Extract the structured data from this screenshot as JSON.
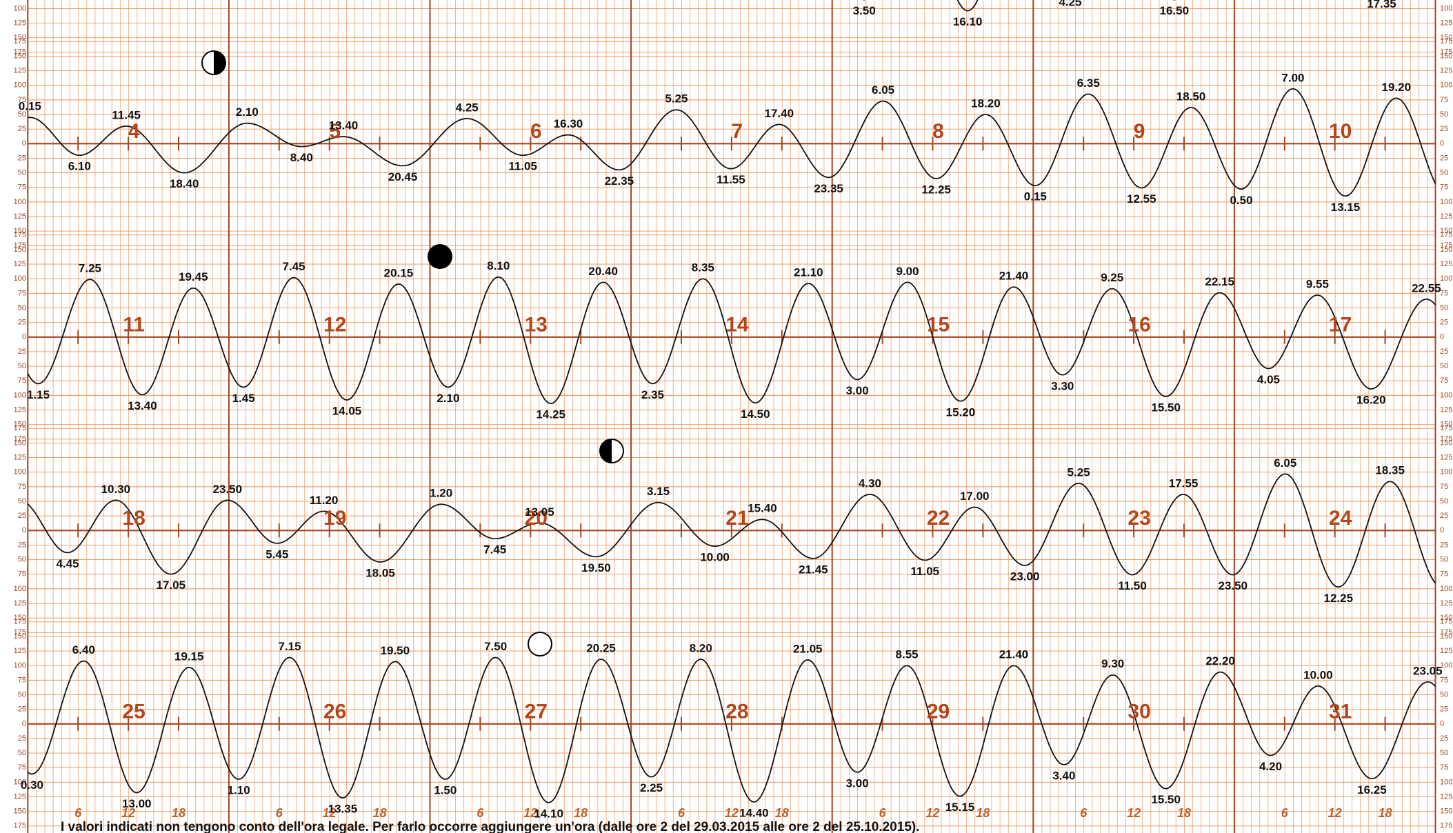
{
  "chart_data": [
    {
      "type": "line",
      "x": [
        99.83,
        112.17,
        124.42,
        136.83,
        161.58
      ],
      "values": [
        -85,
        -104,
        -70,
        -85,
        -73
      ],
      "labels": [
        "3.50",
        "16.10",
        "4.25",
        "16.50",
        "17.35"
      ],
      "xlim": [
        0,
        168
      ],
      "ylim": [
        -175,
        175
      ],
      "yticks": [
        {
          "value": -175,
          "label": "175"
        },
        {
          "value": -150,
          "label": "150"
        },
        {
          "value": -125,
          "label": "125"
        },
        {
          "value": -100,
          "label": "100"
        },
        {
          "value": -75,
          "label": "75"
        },
        {
          "value": -50,
          "label": "50"
        },
        {
          "value": -25,
          "label": "25"
        },
        0,
        25,
        50,
        75,
        100,
        125,
        150,
        175
      ]
    },
    {
      "type": "line",
      "days": [
        4,
        5,
        6,
        7,
        8,
        9,
        10
      ],
      "x": [
        0.25,
        6.17,
        11.75,
        18.67,
        26.17,
        32.67,
        37.67,
        44.75,
        52.42,
        59.08,
        64.5,
        70.58,
        77.42,
        83.92,
        89.67,
        95.58,
        102.08,
        108.42,
        114.33,
        120.25,
        126.58,
        132.92,
        138.83,
        144.83,
        151,
        157.25,
        163.33
      ],
      "values": [
        45,
        -20,
        30,
        -50,
        35,
        -5,
        12,
        -38,
        43,
        -20,
        15,
        -45,
        58,
        -43,
        33,
        -58,
        73,
        -60,
        50,
        -72,
        85,
        -76,
        62,
        -78,
        94,
        -90,
        78
      ],
      "labels": [
        "0.15",
        "6.10",
        "11.45",
        "18.40",
        "2.10",
        "8.40",
        "13.40",
        "20.45",
        "4.25",
        "11.05",
        "16.30",
        "22.35",
        "5.25",
        "11.55",
        "17.40",
        "23.35",
        "6.05",
        "12.25",
        "18.20",
        "0.15",
        "6.35",
        "12.55",
        "18.50",
        "0.50",
        "7.00",
        "13.15",
        "19.20"
      ],
      "xlim": [
        0,
        168
      ],
      "ylim": [
        -175,
        175
      ],
      "yticks": [
        {
          "value": -175,
          "label": "175"
        },
        {
          "value": -150,
          "label": "150"
        },
        {
          "value": -125,
          "label": "125"
        },
        {
          "value": -100,
          "label": "100"
        },
        {
          "value": -75,
          "label": "75"
        },
        {
          "value": -50,
          "label": "50"
        },
        {
          "value": -25,
          "label": "25"
        },
        0,
        25,
        50,
        75,
        100,
        125,
        150,
        175
      ]
    },
    {
      "type": "line",
      "days": [
        11,
        12,
        13,
        14,
        15,
        16,
        17
      ],
      "x": [
        1.25,
        7.42,
        13.67,
        19.75,
        25.75,
        31.75,
        38.08,
        44.25,
        50.17,
        56.17,
        62.42,
        68.67,
        74.58,
        80.58,
        86.83,
        93.17,
        99,
        105,
        111.33,
        117.67,
        123.5,
        129.42,
        135.83,
        142.25,
        148.08,
        153.92,
        160.33,
        166.92
      ],
      "values": [
        -80,
        99,
        -99,
        84,
        -86,
        102,
        -108,
        91,
        -86,
        103,
        -114,
        94,
        -80,
        100,
        -113,
        92,
        -73,
        94,
        -110,
        86,
        -65,
        83,
        -102,
        76,
        -54,
        72,
        -89,
        65
      ],
      "labels": [
        "1.15",
        "7.25",
        "13.40",
        "19.45",
        "1.45",
        "7.45",
        "14.05",
        "20.15",
        "2.10",
        "8.10",
        "14.25",
        "20.40",
        "2.35",
        "8.35",
        "14.50",
        "21.10",
        "3.00",
        "9.00",
        "15.20",
        "21.40",
        "3.30",
        "9.25",
        "15.50",
        "22.15",
        "4.05",
        "9.55",
        "16.20",
        "22.55"
      ],
      "xlim": [
        0,
        168
      ],
      "ylim": [
        -175,
        175
      ],
      "yticks": [
        {
          "value": -175,
          "label": "175"
        },
        {
          "value": -150,
          "label": "150"
        },
        {
          "value": -125,
          "label": "125"
        },
        {
          "value": -100,
          "label": "100"
        },
        {
          "value": -75,
          "label": "75"
        },
        {
          "value": -50,
          "label": "50"
        },
        {
          "value": -25,
          "label": "25"
        },
        0,
        25,
        50,
        75,
        100,
        125,
        150,
        175
      ]
    },
    {
      "type": "line",
      "days": [
        18,
        19,
        20,
        21,
        22,
        23,
        24
      ],
      "x": [
        4.75,
        10.5,
        17.08,
        23.83,
        29.75,
        35.33,
        42.08,
        49.33,
        55.75,
        61.08,
        67.83,
        75.25,
        82,
        87.67,
        93.75,
        100.5,
        107.08,
        113,
        119,
        125.42,
        131.83,
        137.92,
        143.83,
        150.08,
        156.42,
        162.58
      ],
      "values": [
        -38,
        52,
        -75,
        52,
        -22,
        33,
        -54,
        45,
        -14,
        13,
        -45,
        48,
        -27,
        19,
        -48,
        62,
        -51,
        40,
        -60,
        81,
        -76,
        62,
        -76,
        97,
        -97,
        84
      ],
      "labels": [
        "4.45",
        "10.30",
        "17.05",
        "23.50",
        "5.45",
        "11.20",
        "18.05",
        "1.20",
        "7.45",
        "13.05",
        "19.50",
        "3.15",
        "10.00",
        "15.40",
        "21.45",
        "4.30",
        "11.05",
        "17.00",
        "23.00",
        "5.25",
        "11.50",
        "17.55",
        "23.50",
        "6.05",
        "12.25",
        "18.35"
      ],
      "xlim": [
        0,
        168
      ],
      "ylim": [
        -175,
        175
      ],
      "yticks": [
        {
          "value": -175,
          "label": "175"
        },
        {
          "value": -150,
          "label": "150"
        },
        {
          "value": -125,
          "label": "125"
        },
        {
          "value": -100,
          "label": "100"
        },
        {
          "value": -75,
          "label": "75"
        },
        {
          "value": -50,
          "label": "50"
        },
        {
          "value": -25,
          "label": "25"
        },
        0,
        25,
        50,
        75,
        100,
        125,
        150,
        175
      ]
    },
    {
      "type": "line",
      "days": [
        25,
        26,
        27,
        28,
        29,
        30,
        31
      ],
      "hour_ticks": [
        6,
        12,
        18
      ],
      "x": [
        0.5,
        6.67,
        13,
        19.25,
        25.17,
        31.25,
        37.58,
        43.83,
        49.83,
        55.83,
        62.17,
        68.42,
        74.42,
        80.33,
        86.67,
        93.08,
        99,
        104.92,
        111.25,
        117.67,
        123.67,
        129.5,
        135.83,
        142.33,
        148.33,
        154,
        160.42,
        167.08
      ],
      "values": [
        -86,
        108,
        -118,
        97,
        -95,
        114,
        -127,
        107,
        -95,
        114,
        -135,
        111,
        -91,
        111,
        -134,
        110,
        -83,
        100,
        -124,
        100,
        -70,
        84,
        -111,
        89,
        -54,
        65,
        -94,
        72
      ],
      "labels": [
        "0.30",
        "6.40",
        "13.00",
        "19.15",
        "1.10",
        "7.15",
        "13.35",
        "19.50",
        "1.50",
        "7.50",
        "14.10",
        "20.25",
        "2.25",
        "8.20",
        "14.40",
        "21.05",
        "3.00",
        "8.55",
        "15.15",
        "21.40",
        "3.40",
        "9.30",
        "15.50",
        "22.20",
        "4.20",
        "10.00",
        "16.25",
        "23.05"
      ],
      "xlim": [
        0,
        168
      ],
      "ylim": [
        -175,
        175
      ],
      "yticks": [
        {
          "value": -175,
          "label": "175"
        },
        {
          "value": -150,
          "label": "150"
        },
        {
          "value": -125,
          "label": "125"
        },
        {
          "value": -100,
          "label": "100"
        },
        {
          "value": -75,
          "label": "75"
        },
        {
          "value": -50,
          "label": "50"
        },
        {
          "value": -25,
          "label": "25"
        },
        0,
        25,
        50,
        75,
        100,
        125,
        150,
        175
      ]
    }
  ],
  "footer": "I valori indicati non tengono conto dell'ora legale. Per farlo occorre aggiungere un'ora (dalle ore 2 del 29.03.2015 alle ore 2 del 25.10.2015)."
}
